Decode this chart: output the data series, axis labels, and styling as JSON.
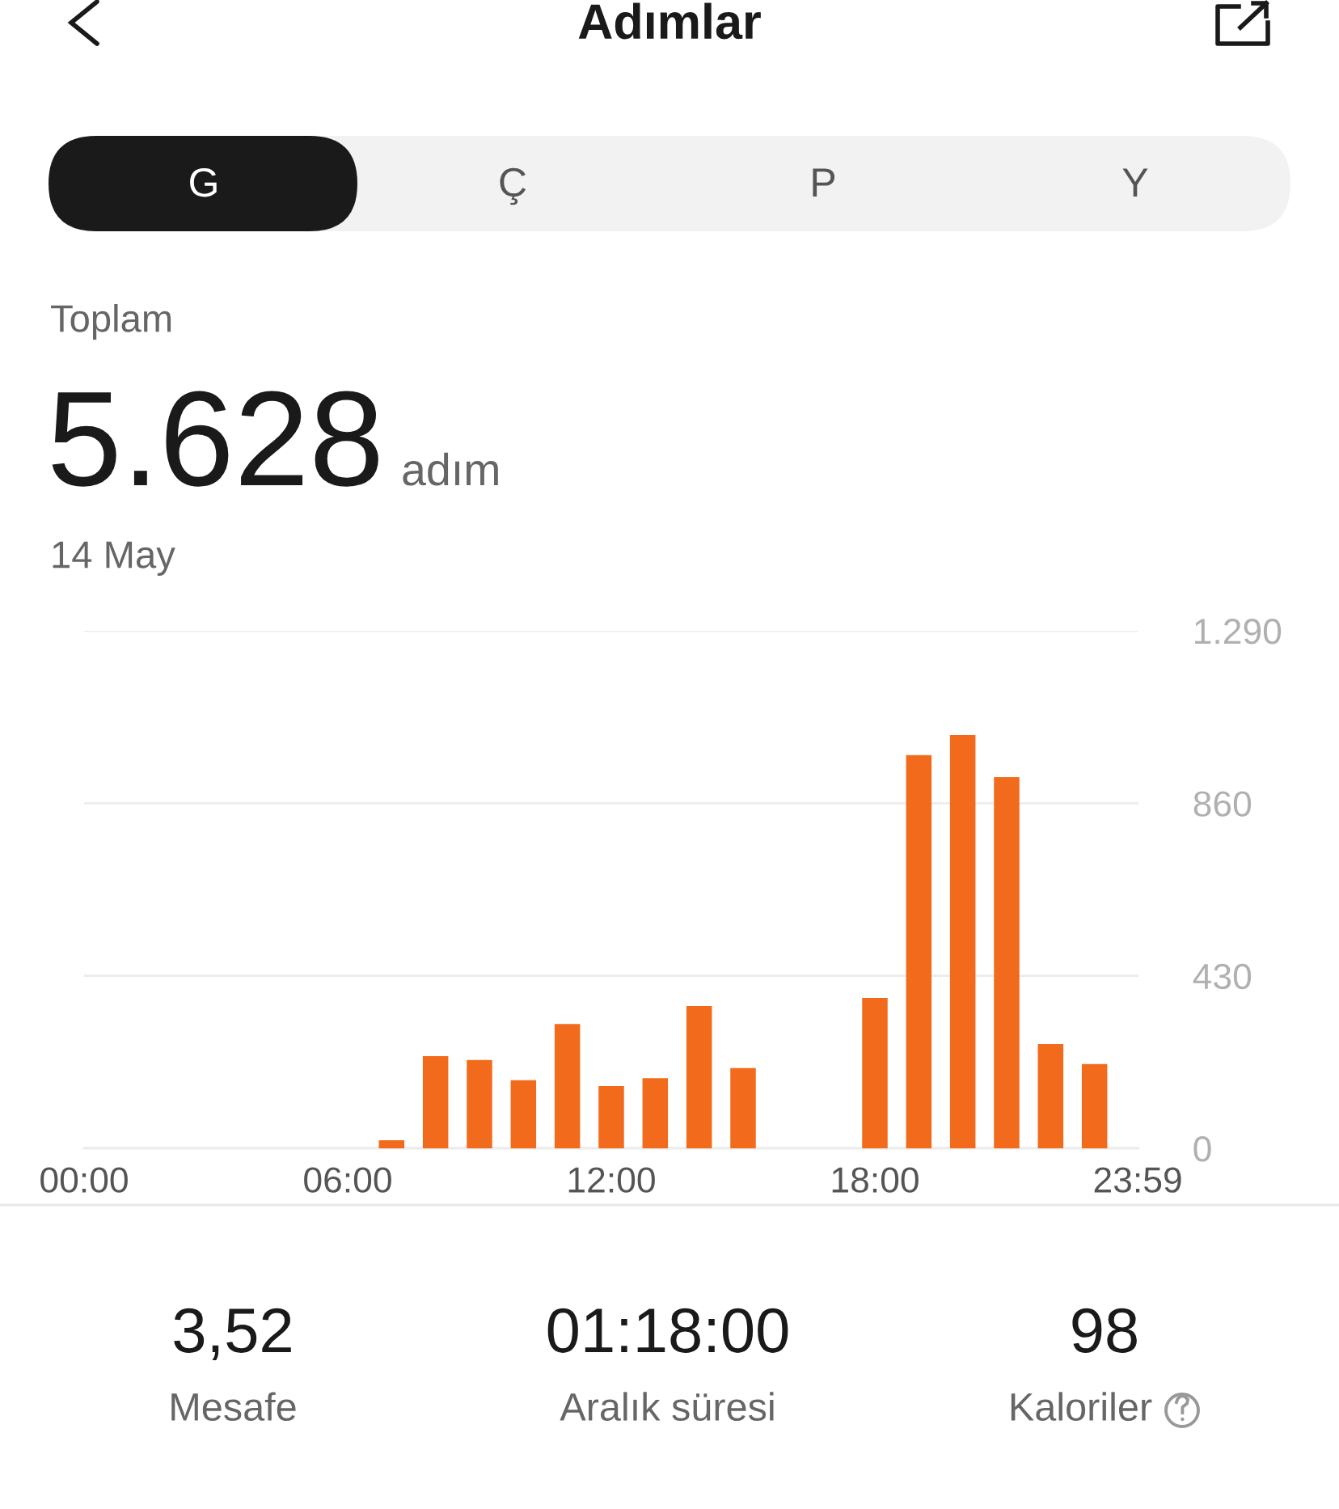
{
  "chart_data": {
    "type": "bar",
    "title": "Adımlar",
    "x": [
      7,
      8,
      9,
      10,
      11,
      12,
      13,
      14,
      15,
      18,
      19,
      20,
      21,
      22,
      23
    ],
    "values": [
      20,
      230,
      220,
      170,
      310,
      155,
      175,
      355,
      200,
      375,
      980,
      1030,
      925,
      260,
      210
    ],
    "color": "#f26b1c",
    "xlim": [
      0,
      24
    ],
    "xticks": [
      {
        "value": 0,
        "label": "00:00"
      },
      {
        "value": 6,
        "label": "06:00"
      },
      {
        "value": 12,
        "label": "12:00"
      },
      {
        "value": 18,
        "label": "18:00"
      },
      {
        "value": 23.983,
        "label": "23:59"
      }
    ],
    "ylim": [
      0,
      1290
    ],
    "yticks": [
      0,
      430,
      860,
      {
        "value": 1290,
        "label": "1.290"
      }
    ],
    "grid": "y",
    "annotations": [
      "G",
      "Ç",
      "P",
      "Y",
      "Toplam",
      "5.628",
      "adım",
      "14 May",
      "3,52",
      "Mesafe",
      "01:18:00",
      "Aralık süresi",
      "98",
      "Kaloriler"
    ]
  }
}
